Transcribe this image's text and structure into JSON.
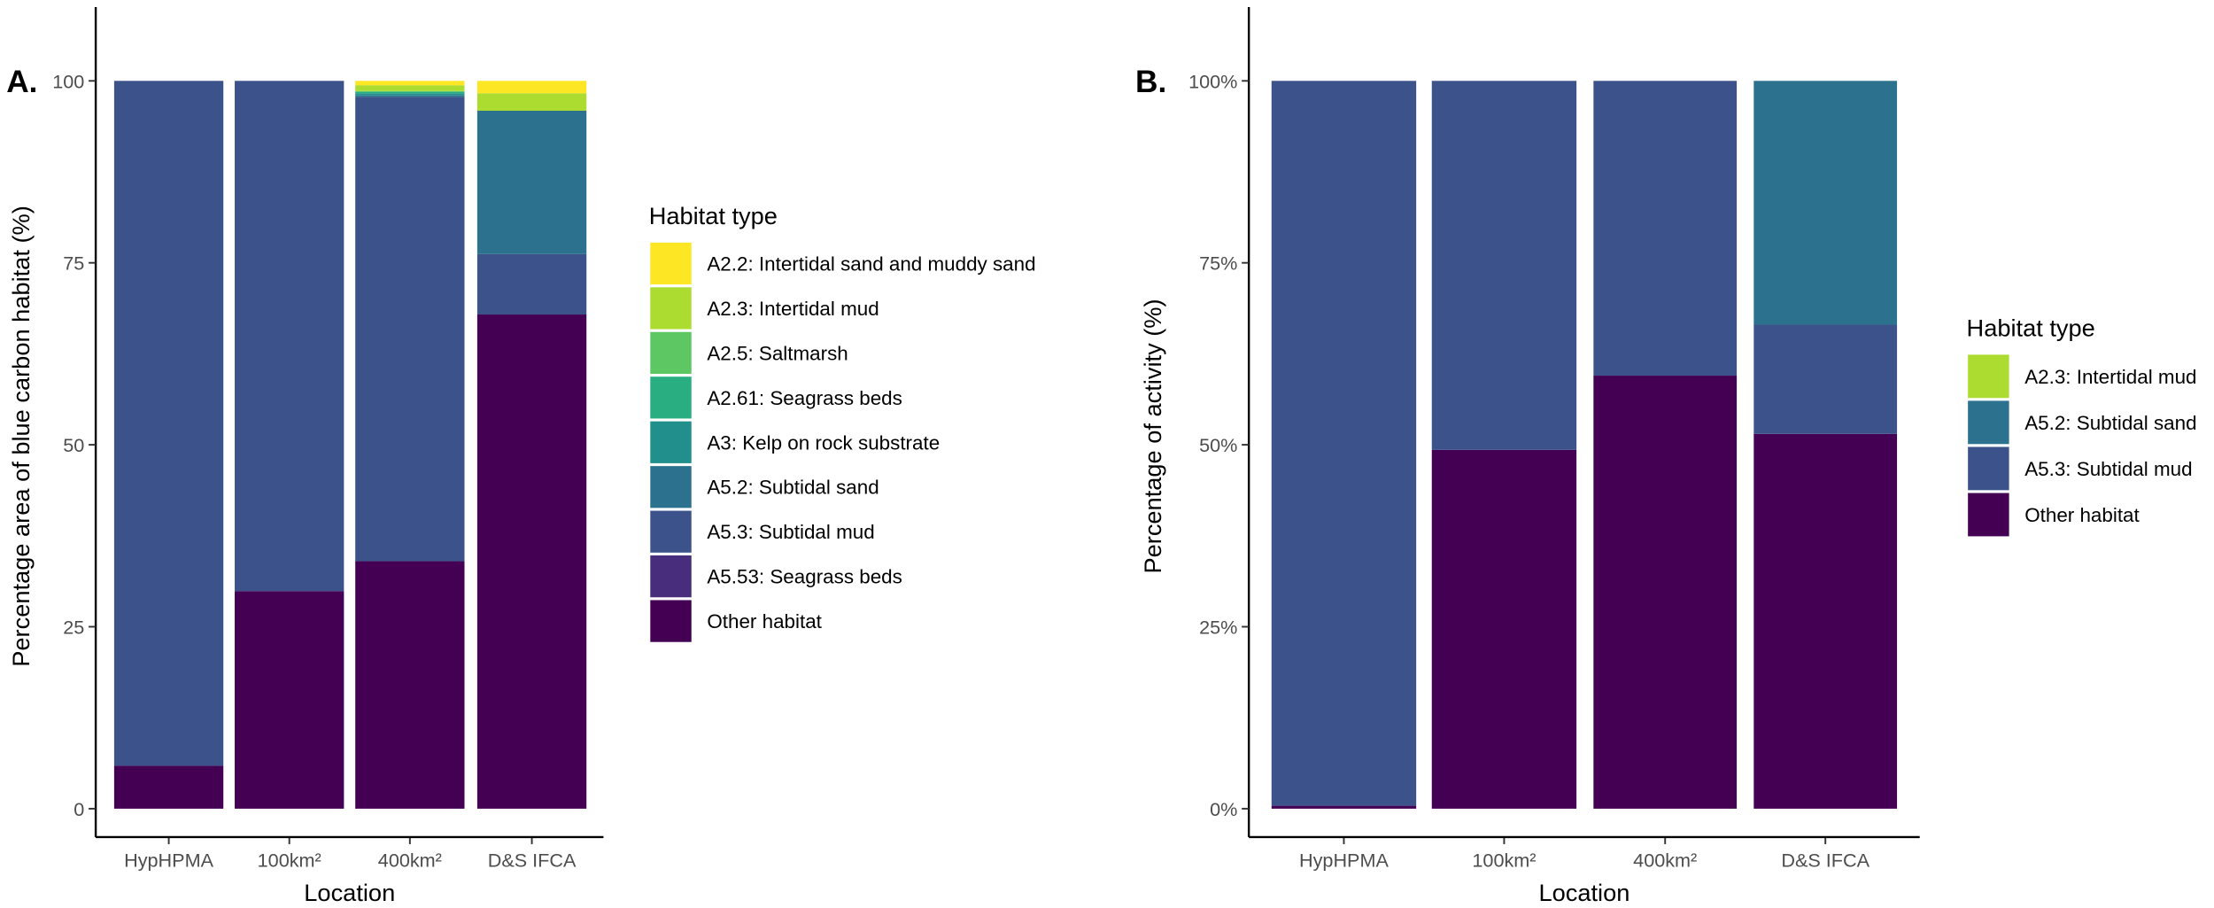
{
  "colors": {
    "A2.2: Intertidal sand and muddy sand": "#FDE725",
    "A2.3: Intertidal mud": "#ADDC30",
    "A2.5: Saltmarsh": "#5DC863",
    "A2.61: Seagrass beds": "#28AE80",
    "A3: Kelp on rock substrate": "#21908C",
    "A5.2: Subtidal sand": "#2C728E",
    "A5.3: Subtidal mud": "#3B528B",
    "A5.53: Seagrass beds": "#472D7B",
    "Other habitat": "#440154"
  },
  "chart_data": [
    {
      "type": "bar",
      "stacked": true,
      "panel_label": "A.",
      "xlabel": "Location",
      "ylabel": "Percentage area of blue carbon habitat (%)",
      "ylim": [
        0,
        100
      ],
      "yticks": [
        "0",
        "25",
        "50",
        "75",
        "100"
      ],
      "categories": [
        "HypHPMA",
        "100km²",
        "400km²",
        "D&S IFCA"
      ],
      "legend_title": "Habitat type",
      "legend_position": "right",
      "grid": false,
      "series": [
        {
          "name": "Other habitat",
          "values": [
            5.9,
            29.9,
            34.0,
            67.9
          ]
        },
        {
          "name": "A5.53: Seagrass beds",
          "values": [
            0,
            0,
            0,
            0
          ]
        },
        {
          "name": "A5.3: Subtidal mud",
          "values": [
            94.1,
            70.1,
            63.8,
            8.3
          ]
        },
        {
          "name": "A5.2: Subtidal sand",
          "values": [
            0,
            0,
            0.2,
            19.7
          ]
        },
        {
          "name": "A3: Kelp on rock substrate",
          "values": [
            0,
            0,
            0.3,
            0
          ]
        },
        {
          "name": "A2.61: Seagrass beds",
          "values": [
            0,
            0,
            0.2,
            0
          ]
        },
        {
          "name": "A2.5: Saltmarsh",
          "values": [
            0,
            0,
            0.1,
            0
          ]
        },
        {
          "name": "A2.3: Intertidal mud",
          "values": [
            0,
            0,
            0.8,
            2.4
          ]
        },
        {
          "name": "A2.2: Intertidal sand and muddy sand",
          "values": [
            0,
            0,
            0.6,
            1.7
          ]
        }
      ]
    },
    {
      "type": "bar",
      "stacked": true,
      "panel_label": "B.",
      "xlabel": "Location",
      "ylabel": "Percentage of activity (%)",
      "ylim": [
        0,
        100
      ],
      "yticks": [
        "0%",
        "25%",
        "50%",
        "75%",
        "100%"
      ],
      "categories": [
        "HypHPMA",
        "100km²",
        "400km²",
        "D&S IFCA"
      ],
      "legend_title": "Habitat type",
      "legend_position": "right",
      "grid": false,
      "series": [
        {
          "name": "Other habitat",
          "values": [
            0.4,
            49.3,
            59.5,
            51.5
          ]
        },
        {
          "name": "A5.3: Subtidal mud",
          "values": [
            99.6,
            50.7,
            40.5,
            15.0
          ]
        },
        {
          "name": "A5.2: Subtidal sand",
          "values": [
            0,
            0,
            0,
            33.5
          ]
        },
        {
          "name": "A2.3: Intertidal mud",
          "values": [
            0,
            0,
            0,
            0
          ]
        }
      ]
    }
  ]
}
